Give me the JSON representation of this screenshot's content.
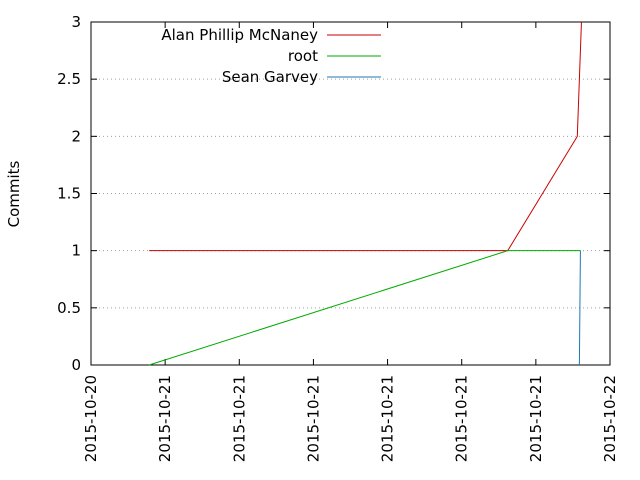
{
  "chart_data": {
    "type": "line",
    "title": "",
    "xlabel": "",
    "ylabel": "Commits",
    "ylim": [
      0,
      3
    ],
    "y_ticks": [
      "0",
      "0.5",
      "1",
      "1.5",
      "2",
      "2.5",
      "3"
    ],
    "x_ticks": [
      "2015-10-20",
      "2015-10-21",
      "2015-10-21",
      "2015-10-21",
      "2015-10-21",
      "2015-10-21",
      "2015-10-21",
      "2015-10-22"
    ],
    "grid": {
      "horizontal": true,
      "vertical": false,
      "style": "dotted"
    },
    "legend_position": "top-left",
    "x_unit": "days",
    "series": [
      {
        "name": "Alan Phillip McNaney",
        "color": "#cc0000",
        "points": [
          [
            0.112,
            1
          ],
          [
            0.803,
            1
          ],
          [
            0.937,
            2
          ],
          [
            0.945,
            3
          ]
        ]
      },
      {
        "name": "root",
        "color": "#00aa00",
        "points": [
          [
            0.112,
            0
          ],
          [
            0.803,
            1
          ],
          [
            0.943,
            1
          ]
        ]
      },
      {
        "name": "Sean Garvey",
        "color": "#1f77b4",
        "points": [
          [
            0.941,
            0
          ],
          [
            0.943,
            1
          ]
        ]
      }
    ]
  }
}
